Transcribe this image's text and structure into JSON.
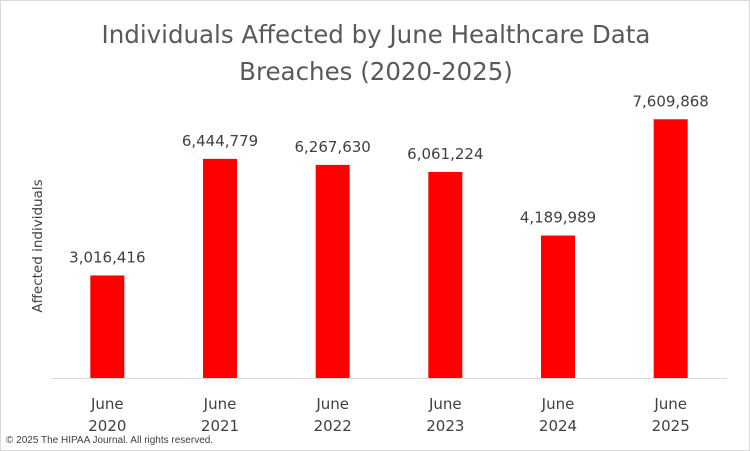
{
  "copyright": "© 2025 The HIPAA Journal. All rights reserved.",
  "chart_data": {
    "type": "bar",
    "title_lines": [
      "Individuals Affected by June Healthcare Data",
      "Breaches (2020-2025)"
    ],
    "ylabel": "Affected individuals",
    "xlabel": "",
    "categories": [
      [
        "June",
        "2020"
      ],
      [
        "June",
        "2021"
      ],
      [
        "June",
        "2022"
      ],
      [
        "June",
        "2023"
      ],
      [
        "June",
        "2024"
      ],
      [
        "June",
        "2025"
      ]
    ],
    "values": [
      3016416,
      6444779,
      6267630,
      6061224,
      4189989,
      7609868
    ],
    "value_labels": [
      "3,016,416",
      "6,444,779",
      "6,267,630",
      "6,061,224",
      "4,189,989",
      "7,609,868"
    ],
    "ylim": [
      0,
      9000000
    ],
    "bar_color": "#ff0000",
    "grid": false,
    "legend": "none"
  }
}
